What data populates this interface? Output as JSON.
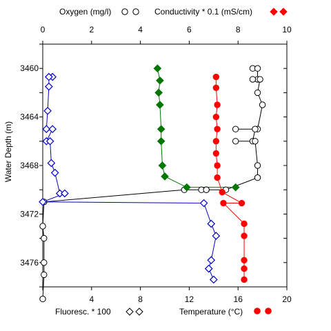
{
  "chart_data": {
    "type": "line",
    "ylabel": "Water Depth (m)",
    "y_axis": {
      "min": 3458,
      "max": 3478,
      "inverted": true,
      "ticks": [
        3460,
        3464,
        3468,
        3472,
        3476
      ],
      "tick_labels": [
        "3460",
        "3464",
        "3468",
        "3472",
        "3476"
      ]
    },
    "top_axis": {
      "min": 0,
      "max": 10,
      "ticks": [
        0,
        2,
        4,
        6,
        8,
        10
      ],
      "tick_labels": [
        "0",
        "2",
        "4",
        "6",
        "8",
        "10"
      ]
    },
    "bottom_axis": {
      "min": 0,
      "max": 20,
      "ticks": [
        0,
        4,
        8,
        12,
        16,
        20
      ],
      "tick_labels": [
        "0",
        "4",
        "8",
        "12",
        "16",
        "20"
      ]
    },
    "grid": false,
    "legend": [
      {
        "label": "Oxygen (mg/l)",
        "position": "top-left",
        "series": "oxygen"
      },
      {
        "label": "Conductivity * 0.1 (mS/cm)",
        "position": "top-right",
        "series": "conductivity"
      },
      {
        "label": "Fluoresc. * 100",
        "position": "bottom-left",
        "series": "fluorescence"
      },
      {
        "label": "Temperature (°C)",
        "position": "bottom-right",
        "series": "temperature"
      }
    ],
    "series": [
      {
        "key": "oxygen",
        "name": "Oxygen (mg/l)",
        "axis": "top",
        "color": "#000000",
        "marker": "circle-open",
        "points": [
          [
            8.6,
            3460.0
          ],
          [
            8.8,
            3460.0
          ],
          [
            8.8,
            3460.9
          ],
          [
            8.6,
            3460.9
          ],
          [
            8.9,
            3460.9
          ],
          [
            8.8,
            3462.0
          ],
          [
            9.0,
            3463.0
          ],
          [
            8.8,
            3465.0
          ],
          [
            7.9,
            3465.0
          ],
          [
            8.7,
            3465.0
          ],
          [
            8.6,
            3466.0
          ],
          [
            7.9,
            3466.0
          ],
          [
            8.7,
            3466.0
          ],
          [
            8.8,
            3468.0
          ],
          [
            8.8,
            3469.0
          ],
          [
            7.5,
            3470.0
          ],
          [
            6.7,
            3470.0
          ],
          [
            6.5,
            3470.0
          ],
          [
            6.7,
            3470.0
          ],
          [
            5.8,
            3470.0
          ],
          [
            0.05,
            3471.0
          ],
          [
            0.0,
            3473.0
          ],
          [
            0.05,
            3474.0
          ],
          [
            0.05,
            3476.0
          ],
          [
            0.05,
            3477.0
          ],
          [
            0.0,
            3479.0
          ]
        ]
      },
      {
        "key": "conductivity",
        "name": "Conductivity * 0.1 (mS/cm)",
        "axis": "top",
        "color": "#ff0000",
        "marker": "diamond-filled",
        "points": []
      },
      {
        "key": "fluorescence",
        "name": "Fluoresc. * 100",
        "axis": "bottom",
        "color": "#0000cc",
        "marker": "diamond-open",
        "points": [
          [
            0.8,
            3460.7
          ],
          [
            0.5,
            3460.7
          ],
          [
            0.5,
            3461.5
          ],
          [
            0.4,
            3463.5
          ],
          [
            0.3,
            3465.0
          ],
          [
            0.8,
            3465.0
          ],
          [
            0.3,
            3466.0
          ],
          [
            0.6,
            3466.0
          ],
          [
            0.7,
            3467.8
          ],
          [
            1.0,
            3468.6
          ],
          [
            1.4,
            3470.3
          ],
          [
            1.8,
            3470.3
          ],
          [
            0.0,
            3471.0
          ],
          [
            13.2,
            3471.1
          ],
          [
            13.8,
            3472.8
          ],
          [
            14.2,
            3473.8
          ],
          [
            13.8,
            3475.8
          ],
          [
            13.6,
            3476.5
          ],
          [
            14.0,
            3477.4
          ]
        ]
      },
      {
        "key": "temperature",
        "name": "Temperature (°C)",
        "axis": "bottom",
        "color": "#ff0000",
        "marker": "circle-filled",
        "points": [
          [
            14.2,
            3460.7
          ],
          [
            14.2,
            3461.6
          ],
          [
            14.3,
            3463.0
          ],
          [
            14.2,
            3464.0
          ],
          [
            14.3,
            3465.0
          ],
          [
            14.2,
            3466.0
          ],
          [
            14.2,
            3467.0
          ],
          [
            14.3,
            3468.0
          ],
          [
            14.3,
            3469.0
          ],
          [
            14.7,
            3470.2
          ],
          [
            16.3,
            3471.1
          ],
          [
            14.8,
            3471.1
          ],
          [
            16.5,
            3472.8
          ],
          [
            16.5,
            3473.8
          ],
          [
            16.5,
            3475.8
          ],
          [
            16.5,
            3476.5
          ],
          [
            16.5,
            3477.4
          ]
        ]
      },
      {
        "key": "conductivity_green",
        "name": "",
        "axis": "top",
        "color": "#007700",
        "marker": "diamond-filled",
        "points": [
          [
            4.7,
            3460.0
          ],
          [
            4.8,
            3461.0
          ],
          [
            4.75,
            3462.0
          ],
          [
            4.8,
            3463.0
          ],
          [
            4.85,
            3465.0
          ],
          [
            4.85,
            3466.0
          ],
          [
            4.9,
            3468.0
          ],
          [
            5.0,
            3468.9
          ],
          [
            5.9,
            3469.8
          ],
          [
            7.9,
            3469.8
          ]
        ]
      }
    ]
  }
}
